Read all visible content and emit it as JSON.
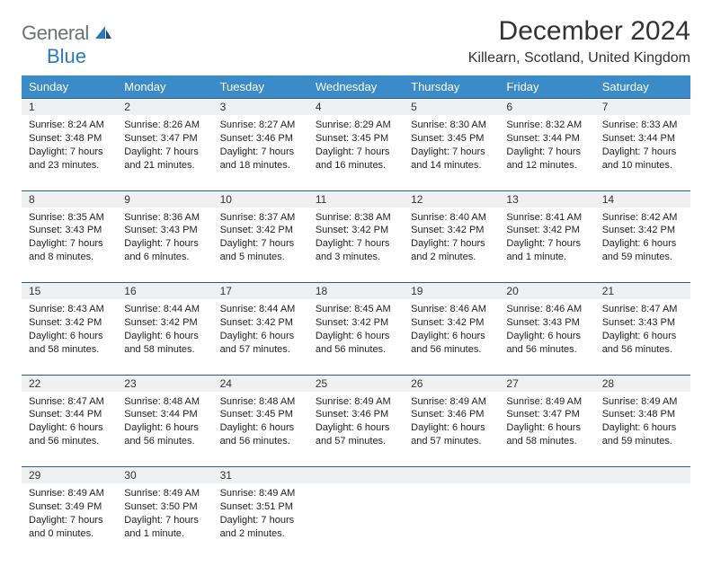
{
  "logo": {
    "general": "General",
    "blue": "Blue"
  },
  "title": "December 2024",
  "location": "Killearn, Scotland, United Kingdom",
  "colors": {
    "header_bg": "#3b8bc8",
    "header_text": "#ffffff",
    "daynum_bg": "#eef0f1",
    "rule": "#2a5d86",
    "logo_gray": "#6b7278",
    "logo_blue": "#2a7ab9",
    "page_bg": "#ffffff"
  },
  "weekdays": [
    "Sunday",
    "Monday",
    "Tuesday",
    "Wednesday",
    "Thursday",
    "Friday",
    "Saturday"
  ],
  "weeks": [
    [
      {
        "n": "1",
        "sr": "Sunrise: 8:24 AM",
        "ss": "Sunset: 3:48 PM",
        "dl": "Daylight: 7 hours and 23 minutes."
      },
      {
        "n": "2",
        "sr": "Sunrise: 8:26 AM",
        "ss": "Sunset: 3:47 PM",
        "dl": "Daylight: 7 hours and 21 minutes."
      },
      {
        "n": "3",
        "sr": "Sunrise: 8:27 AM",
        "ss": "Sunset: 3:46 PM",
        "dl": "Daylight: 7 hours and 18 minutes."
      },
      {
        "n": "4",
        "sr": "Sunrise: 8:29 AM",
        "ss": "Sunset: 3:45 PM",
        "dl": "Daylight: 7 hours and 16 minutes."
      },
      {
        "n": "5",
        "sr": "Sunrise: 8:30 AM",
        "ss": "Sunset: 3:45 PM",
        "dl": "Daylight: 7 hours and 14 minutes."
      },
      {
        "n": "6",
        "sr": "Sunrise: 8:32 AM",
        "ss": "Sunset: 3:44 PM",
        "dl": "Daylight: 7 hours and 12 minutes."
      },
      {
        "n": "7",
        "sr": "Sunrise: 8:33 AM",
        "ss": "Sunset: 3:44 PM",
        "dl": "Daylight: 7 hours and 10 minutes."
      }
    ],
    [
      {
        "n": "8",
        "sr": "Sunrise: 8:35 AM",
        "ss": "Sunset: 3:43 PM",
        "dl": "Daylight: 7 hours and 8 minutes."
      },
      {
        "n": "9",
        "sr": "Sunrise: 8:36 AM",
        "ss": "Sunset: 3:43 PM",
        "dl": "Daylight: 7 hours and 6 minutes."
      },
      {
        "n": "10",
        "sr": "Sunrise: 8:37 AM",
        "ss": "Sunset: 3:42 PM",
        "dl": "Daylight: 7 hours and 5 minutes."
      },
      {
        "n": "11",
        "sr": "Sunrise: 8:38 AM",
        "ss": "Sunset: 3:42 PM",
        "dl": "Daylight: 7 hours and 3 minutes."
      },
      {
        "n": "12",
        "sr": "Sunrise: 8:40 AM",
        "ss": "Sunset: 3:42 PM",
        "dl": "Daylight: 7 hours and 2 minutes."
      },
      {
        "n": "13",
        "sr": "Sunrise: 8:41 AM",
        "ss": "Sunset: 3:42 PM",
        "dl": "Daylight: 7 hours and 1 minute."
      },
      {
        "n": "14",
        "sr": "Sunrise: 8:42 AM",
        "ss": "Sunset: 3:42 PM",
        "dl": "Daylight: 6 hours and 59 minutes."
      }
    ],
    [
      {
        "n": "15",
        "sr": "Sunrise: 8:43 AM",
        "ss": "Sunset: 3:42 PM",
        "dl": "Daylight: 6 hours and 58 minutes."
      },
      {
        "n": "16",
        "sr": "Sunrise: 8:44 AM",
        "ss": "Sunset: 3:42 PM",
        "dl": "Daylight: 6 hours and 58 minutes."
      },
      {
        "n": "17",
        "sr": "Sunrise: 8:44 AM",
        "ss": "Sunset: 3:42 PM",
        "dl": "Daylight: 6 hours and 57 minutes."
      },
      {
        "n": "18",
        "sr": "Sunrise: 8:45 AM",
        "ss": "Sunset: 3:42 PM",
        "dl": "Daylight: 6 hours and 56 minutes."
      },
      {
        "n": "19",
        "sr": "Sunrise: 8:46 AM",
        "ss": "Sunset: 3:42 PM",
        "dl": "Daylight: 6 hours and 56 minutes."
      },
      {
        "n": "20",
        "sr": "Sunrise: 8:46 AM",
        "ss": "Sunset: 3:43 PM",
        "dl": "Daylight: 6 hours and 56 minutes."
      },
      {
        "n": "21",
        "sr": "Sunrise: 8:47 AM",
        "ss": "Sunset: 3:43 PM",
        "dl": "Daylight: 6 hours and 56 minutes."
      }
    ],
    [
      {
        "n": "22",
        "sr": "Sunrise: 8:47 AM",
        "ss": "Sunset: 3:44 PM",
        "dl": "Daylight: 6 hours and 56 minutes."
      },
      {
        "n": "23",
        "sr": "Sunrise: 8:48 AM",
        "ss": "Sunset: 3:44 PM",
        "dl": "Daylight: 6 hours and 56 minutes."
      },
      {
        "n": "24",
        "sr": "Sunrise: 8:48 AM",
        "ss": "Sunset: 3:45 PM",
        "dl": "Daylight: 6 hours and 56 minutes."
      },
      {
        "n": "25",
        "sr": "Sunrise: 8:49 AM",
        "ss": "Sunset: 3:46 PM",
        "dl": "Daylight: 6 hours and 57 minutes."
      },
      {
        "n": "26",
        "sr": "Sunrise: 8:49 AM",
        "ss": "Sunset: 3:46 PM",
        "dl": "Daylight: 6 hours and 57 minutes."
      },
      {
        "n": "27",
        "sr": "Sunrise: 8:49 AM",
        "ss": "Sunset: 3:47 PM",
        "dl": "Daylight: 6 hours and 58 minutes."
      },
      {
        "n": "28",
        "sr": "Sunrise: 8:49 AM",
        "ss": "Sunset: 3:48 PM",
        "dl": "Daylight: 6 hours and 59 minutes."
      }
    ],
    [
      {
        "n": "29",
        "sr": "Sunrise: 8:49 AM",
        "ss": "Sunset: 3:49 PM",
        "dl": "Daylight: 7 hours and 0 minutes."
      },
      {
        "n": "30",
        "sr": "Sunrise: 8:49 AM",
        "ss": "Sunset: 3:50 PM",
        "dl": "Daylight: 7 hours and 1 minute."
      },
      {
        "n": "31",
        "sr": "Sunrise: 8:49 AM",
        "ss": "Sunset: 3:51 PM",
        "dl": "Daylight: 7 hours and 2 minutes."
      },
      null,
      null,
      null,
      null
    ]
  ]
}
